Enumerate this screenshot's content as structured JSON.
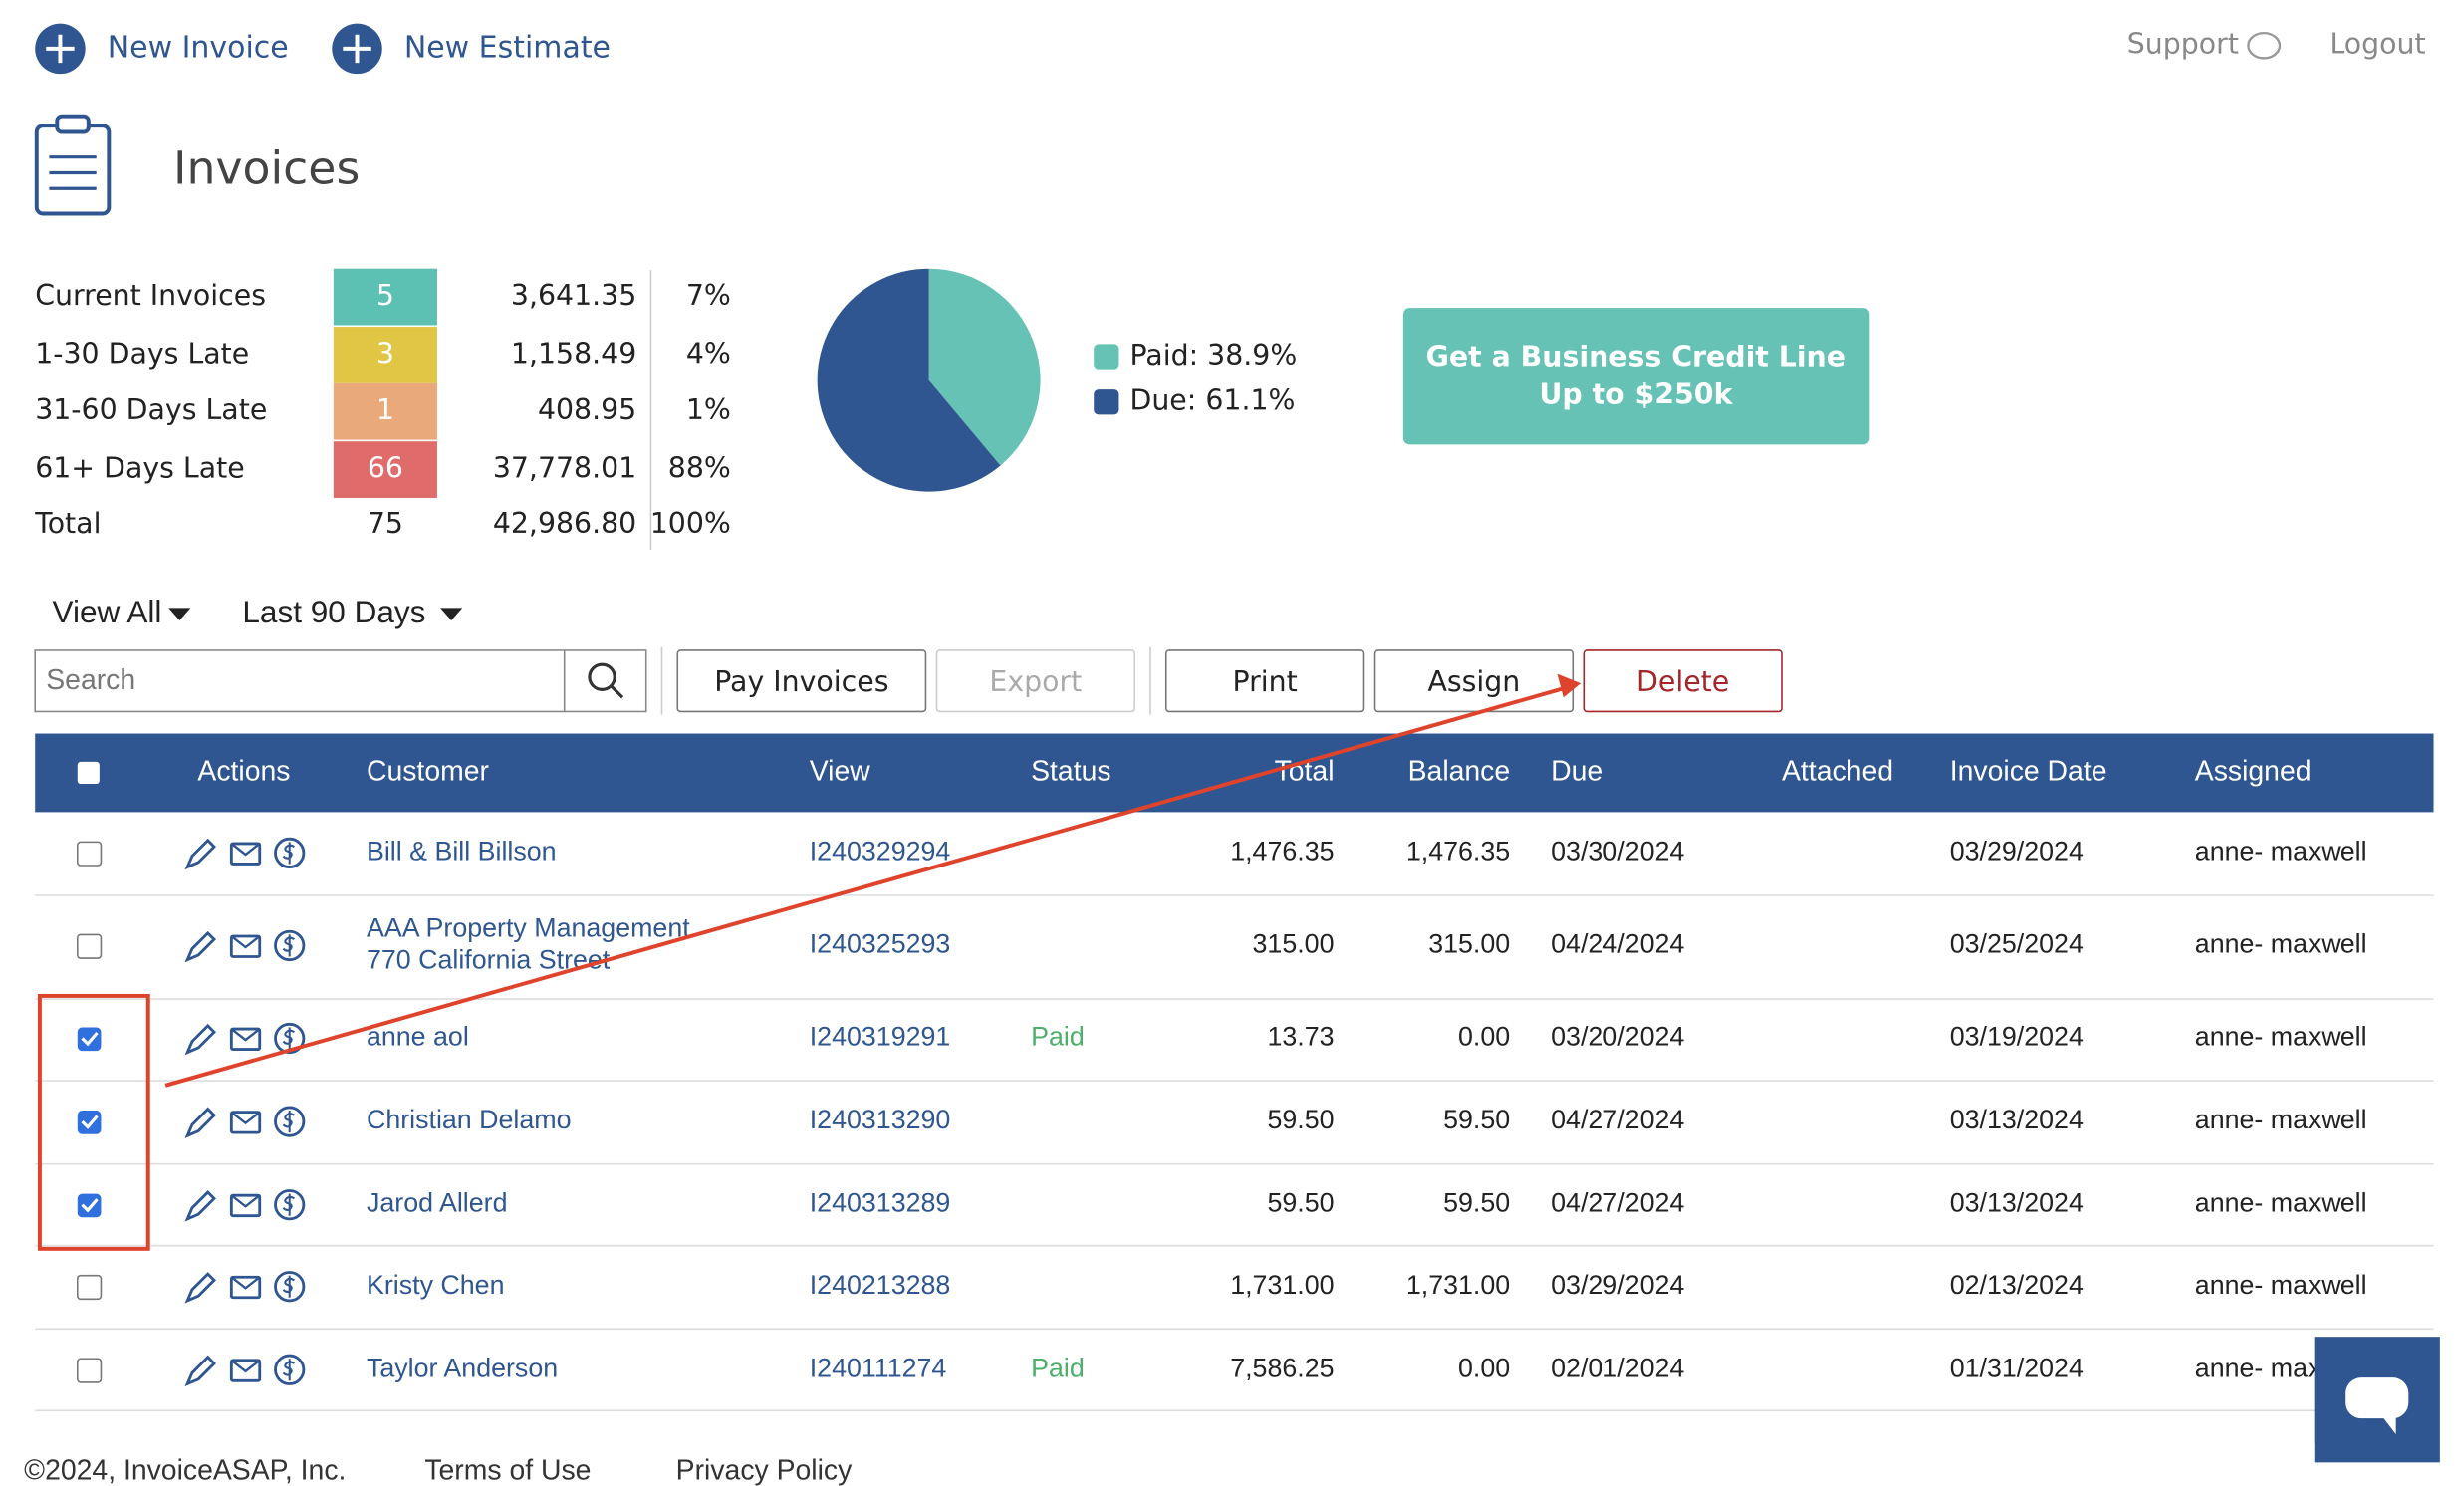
{
  "header": {
    "new_invoice": "New Invoice",
    "new_estimate": "New Estimate",
    "support": "Support",
    "logout": "Logout"
  },
  "page_title": "Invoices",
  "summary": {
    "rows": [
      [
        "Current Invoices",
        "5",
        "3,641.35",
        "7%"
      ],
      [
        "1-30 Days Late",
        "3",
        "1,158.49",
        "4%"
      ],
      [
        "31-60 Days Late",
        "1",
        "408.95",
        "1%"
      ],
      [
        "61+ Days Late",
        "66",
        "37,778.01",
        "88%"
      ],
      [
        "Total",
        "75",
        "42,986.80",
        "100%"
      ]
    ],
    "colors": [
      "#5cc0b2",
      "#e1c545",
      "#eaa97a",
      "#e06b6b"
    ]
  },
  "pie": {
    "slices": [
      {
        "legend": "Paid: 38.9%",
        "value": 38.9,
        "color": "#66c2b5"
      },
      {
        "legend": "Due: 61.1%",
        "value": 61.1,
        "color": "#2f5690"
      }
    ]
  },
  "promo": [
    "Get a Business Credit Line",
    "Up to $250k"
  ],
  "filters": [
    "View All",
    "Last 90 Days"
  ],
  "search_placeholder": "Search",
  "buttons": [
    "Pay Invoices",
    "Export",
    "Print",
    "Assign",
    "Delete"
  ],
  "table": {
    "columns": [
      "Actions",
      "Customer",
      "View",
      "Status",
      "Total",
      "Balance",
      "Due",
      "Attached",
      "Invoice Date",
      "Assigned"
    ],
    "rows": [
      {
        "checked": false,
        "customer": [
          "Bill & Bill Billson"
        ],
        "view": "I240329294",
        "status": null,
        "total": "1,476.35",
        "balance": "1,476.35",
        "due": "03/30/2024",
        "invoice_date": "03/29/2024",
        "assigned": "anne- maxwell"
      },
      {
        "checked": false,
        "customer": [
          "AAA Property Management",
          "770 California Street"
        ],
        "view": "I240325293",
        "status": null,
        "total": "315.00",
        "balance": "315.00",
        "due": "04/24/2024",
        "invoice_date": "03/25/2024",
        "assigned": "anne- maxwell"
      },
      {
        "checked": true,
        "customer": [
          "anne aol"
        ],
        "view": "I240319291",
        "status": "Paid",
        "total": "13.73",
        "balance": "0.00",
        "due": "03/20/2024",
        "invoice_date": "03/19/2024",
        "assigned": "anne- maxwell"
      },
      {
        "checked": true,
        "customer": [
          "Christian Delamo"
        ],
        "view": "I240313290",
        "status": null,
        "total": "59.50",
        "balance": "59.50",
        "due": "04/27/2024",
        "invoice_date": "03/13/2024",
        "assigned": "anne- maxwell"
      },
      {
        "checked": true,
        "customer": [
          "Jarod Allerd"
        ],
        "view": "I240313289",
        "status": null,
        "total": "59.50",
        "balance": "59.50",
        "due": "04/27/2024",
        "invoice_date": "03/13/2024",
        "assigned": "anne- maxwell"
      },
      {
        "checked": false,
        "customer": [
          "Kristy Chen"
        ],
        "view": "I240213288",
        "status": null,
        "total": "1,731.00",
        "balance": "1,731.00",
        "due": "03/29/2024",
        "invoice_date": "02/13/2024",
        "assigned": "anne- maxwell"
      },
      {
        "checked": false,
        "customer": [
          "Taylor Anderson"
        ],
        "view": "I240111274",
        "status": "Paid",
        "total": "7,586.25",
        "balance": "0.00",
        "due": "02/01/2024",
        "invoice_date": "01/31/2024",
        "assigned": "anne- max"
      }
    ]
  },
  "footer": {
    "copyright": "©2024, InvoiceASAP, Inc.",
    "terms": "Terms of Use",
    "privacy": "Privacy Policy"
  }
}
